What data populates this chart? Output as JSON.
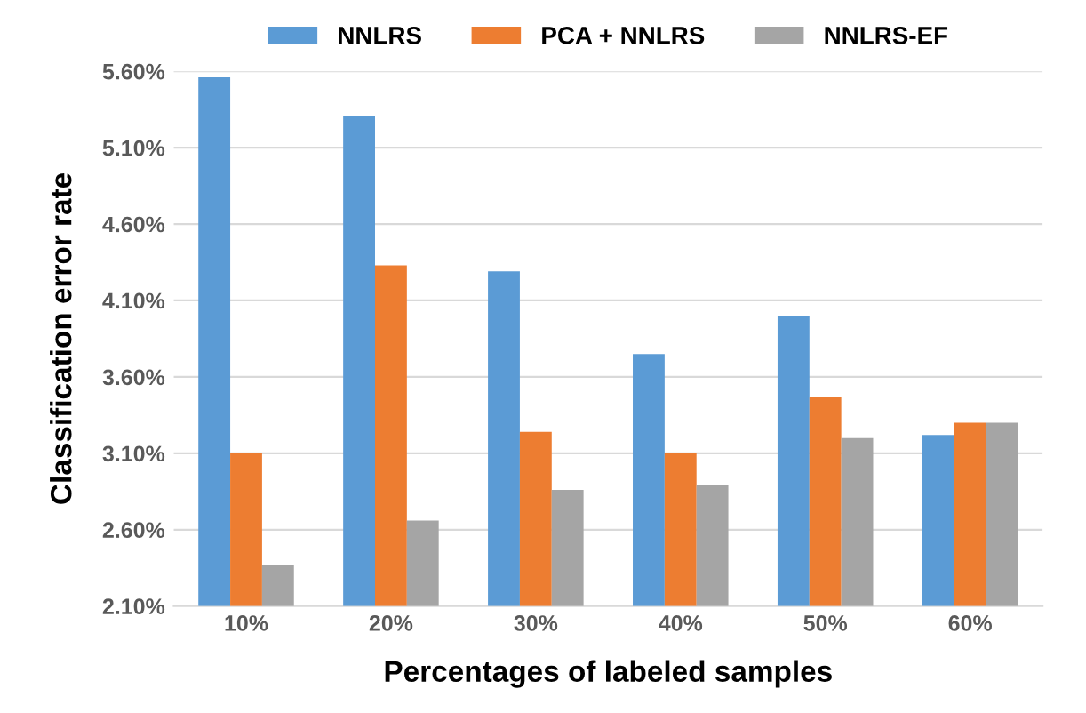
{
  "chart_data": {
    "type": "bar",
    "xlabel": "Percentages of labeled samples",
    "ylabel": "Classification error rate",
    "categories": [
      "10%",
      "20%",
      "30%",
      "40%",
      "50%",
      "60%"
    ],
    "series": [
      {
        "name": "NNLRS",
        "color": "#5b9bd5",
        "values": [
          5.56,
          5.31,
          4.29,
          3.75,
          4.0,
          3.22
        ]
      },
      {
        "name": "PCA + NNLRS",
        "color": "#ed7d31",
        "values": [
          3.1,
          4.33,
          3.24,
          3.1,
          3.47,
          3.3
        ]
      },
      {
        "name": "NNLRS-EF",
        "color": "#a5a5a5",
        "values": [
          2.37,
          2.66,
          2.86,
          2.89,
          3.2,
          3.3
        ]
      }
    ],
    "ylim": [
      2.1,
      5.6
    ],
    "yticks": [
      {
        "value": 2.1,
        "label": "2.10%"
      },
      {
        "value": 2.6,
        "label": "2.60%"
      },
      {
        "value": 3.1,
        "label": "3.10%"
      },
      {
        "value": 3.6,
        "label": "3.60%"
      },
      {
        "value": 4.1,
        "label": "4.10%"
      },
      {
        "value": 4.6,
        "label": "4.60%"
      },
      {
        "value": 5.1,
        "label": "5.10%"
      },
      {
        "value": 5.6,
        "label": "5.60%"
      }
    ],
    "grid": "y",
    "legend": "top"
  }
}
